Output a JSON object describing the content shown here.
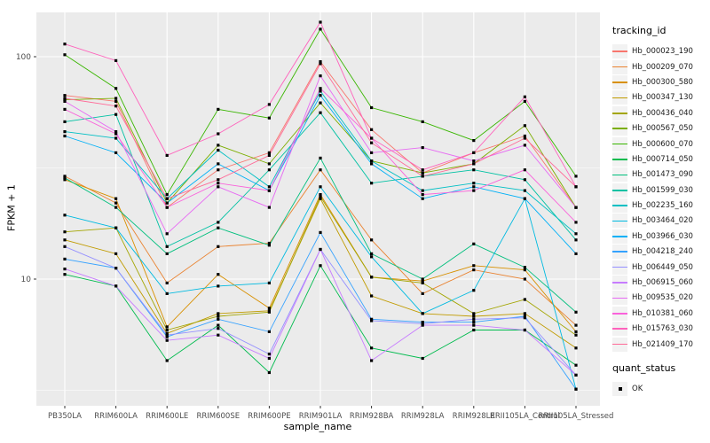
{
  "figure": {
    "panel_background": "#EBEBEB",
    "gridline_color": "#FFFFFF",
    "axis_text_color": "#4D4D4D",
    "point_color": "#000000",
    "legend_key_background": "#F2F2F2"
  },
  "chart_data": {
    "type": "line",
    "title": "",
    "xlabel": "sample_name",
    "ylabel": "FPKM + 1",
    "y_scale": "log10",
    "y_ticks": [
      10,
      100
    ],
    "y_minor_ticks": [
      3.162,
      31.623
    ],
    "ylim": [
      3,
      160
    ],
    "grid": true,
    "legend_position": "right",
    "legend_title": "tracking_id",
    "legend2_title": "quant_status",
    "legend2_items": [
      {
        "label": "OK"
      }
    ],
    "point_shape": "square",
    "categories": [
      "PB350LA",
      "RRIM600LA",
      "RRIM600LE",
      "RRIM600SE",
      "RRIM600PE",
      "RRIM901LA",
      "RRIM928BA",
      "RRIM928LA",
      "RRIM928LE",
      "RRII105LA_Control",
      "RRII105LA_Stressed"
    ],
    "series": [
      {
        "name": "Hb_000023_190",
        "color": "#F8766D",
        "values": [
          67,
          63,
          21,
          31,
          37,
          95,
          47,
          30,
          37,
          44,
          21
        ]
      },
      {
        "name": "Hb_000209_070",
        "color": "#EA8331",
        "values": [
          29,
          22,
          9.6,
          14,
          14.5,
          31,
          15,
          8.6,
          11,
          10,
          6.2
        ]
      },
      {
        "name": "Hb_000300_580",
        "color": "#D89000",
        "values": [
          28,
          23,
          6.1,
          10.5,
          7.4,
          24,
          10.2,
          9.8,
          11.5,
          11,
          5.8
        ]
      },
      {
        "name": "Hb_000347_130",
        "color": "#C09B00",
        "values": [
          15,
          13,
          5.7,
          7.0,
          7.2,
          23,
          8.4,
          7.0,
          6.8,
          7.0,
          4.9
        ]
      },
      {
        "name": "Hb_000436_040",
        "color": "#A3A500",
        "values": [
          16.3,
          17,
          5.9,
          6.8,
          7.1,
          23.5,
          10.2,
          9.6,
          7.0,
          8.1,
          5.6
        ]
      },
      {
        "name": "Hb_000567_050",
        "color": "#7CAE00",
        "values": [
          64,
          65,
          22,
          40,
          33,
          62,
          34,
          30,
          33,
          49,
          21
        ]
      },
      {
        "name": "Hb_000600_070",
        "color": "#39B600",
        "values": [
          102,
          72,
          24,
          58,
          53,
          133,
          59,
          51,
          42,
          63,
          29
        ]
      },
      {
        "name": "Hb_000714_050",
        "color": "#00BB4E",
        "values": [
          10.5,
          9.3,
          4.3,
          6.2,
          3.8,
          11.5,
          4.9,
          4.4,
          5.9,
          5.9,
          4.1
        ]
      },
      {
        "name": "Hb_001473_090",
        "color": "#00BF7D",
        "values": [
          28.5,
          21,
          13,
          17,
          14.2,
          35,
          13,
          10,
          14.4,
          11.3,
          7.1
        ]
      },
      {
        "name": "Hb_001599_030",
        "color": "#00C1A3",
        "values": [
          51,
          55,
          14,
          18,
          31,
          56,
          27,
          29,
          31,
          28,
          15
        ]
      },
      {
        "name": "Hb_002235_160",
        "color": "#00BFC4",
        "values": [
          46,
          43,
          23,
          38,
          26,
          70,
          34,
          25,
          27,
          25,
          16
        ]
      },
      {
        "name": "Hb_003464_020",
        "color": "#00BAE0",
        "values": [
          19.4,
          17,
          8.6,
          9.3,
          9.6,
          26,
          12.6,
          7.0,
          8.9,
          23,
          3.2
        ]
      },
      {
        "name": "Hb_003966_030",
        "color": "#00B0F6",
        "values": [
          44,
          37,
          22,
          33,
          25,
          67,
          33,
          23,
          26,
          23,
          13
        ]
      },
      {
        "name": "Hb_004218_240",
        "color": "#35A2FF",
        "values": [
          12.3,
          11.2,
          5.5,
          6.6,
          5.8,
          16.2,
          6.6,
          6.4,
          6.4,
          6.8,
          3.2
        ]
      },
      {
        "name": "Hb_006449_050",
        "color": "#9590FF",
        "values": [
          14,
          11.2,
          5.6,
          6.0,
          4.6,
          13.6,
          6.5,
          6.3,
          6.6,
          6.7,
          3.7
        ]
      },
      {
        "name": "Hb_006915_060",
        "color": "#C77CFF",
        "values": [
          11.1,
          9.3,
          5.3,
          5.6,
          4.4,
          13.6,
          4.3,
          6.2,
          6.2,
          5.9,
          3.7
        ]
      },
      {
        "name": "Hb_009535_020",
        "color": "#E76BF3",
        "values": [
          63,
          46,
          16,
          26,
          21,
          82,
          37,
          39,
          34,
          40,
          21
        ]
      },
      {
        "name": "Hb_010381_060",
        "color": "#FA62DB",
        "values": [
          58,
          45,
          21,
          27,
          25,
          72,
          43,
          24,
          25,
          31,
          18
        ]
      },
      {
        "name": "Hb_015763_030",
        "color": "#FF62BC",
        "values": [
          114,
          96,
          36,
          45,
          61,
          143,
          43,
          31,
          37,
          66,
          26
        ]
      },
      {
        "name": "Hb_021409_170",
        "color": "#FF6A98",
        "values": [
          65,
          60,
          23,
          28,
          36,
          93,
          41,
          29,
          33,
          43,
          26
        ]
      }
    ]
  }
}
